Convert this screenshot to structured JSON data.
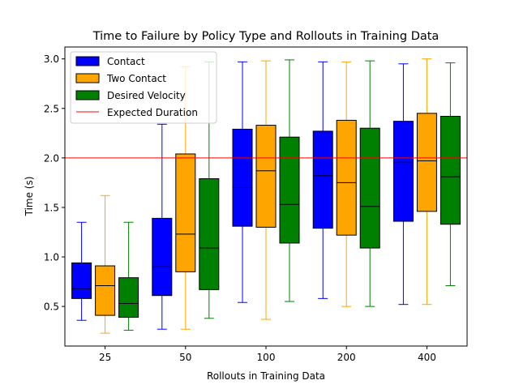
{
  "chart_data": {
    "type": "box",
    "title": "Time to Failure by Policy Type and Rollouts in Training Data",
    "xlabel": "Rollouts in Training Data",
    "ylabel": "Time (s)",
    "ylim": [
      0.1,
      3.12
    ],
    "yticks": [
      "0.5",
      "1.0",
      "1.5",
      "2.0",
      "2.5",
      "3.0"
    ],
    "categories": [
      "25",
      "50",
      "100",
      "200",
      "400"
    ],
    "legend_position": "top-left",
    "grid": false,
    "reference_line": {
      "name": "Expected Duration",
      "value": 2.0,
      "color": "#ff0000"
    },
    "series": [
      {
        "name": "Contact",
        "fill": "#0000ff",
        "whisker_color": "#0000ff",
        "boxes": [
          {
            "min": 0.36,
            "q1": 0.58,
            "median": 0.68,
            "q3": 0.94,
            "max": 1.35
          },
          {
            "min": 0.27,
            "q1": 0.61,
            "median": 0.9,
            "q3": 1.39,
            "max": 2.34
          },
          {
            "min": 0.54,
            "q1": 1.31,
            "median": 1.7,
            "q3": 2.29,
            "max": 2.97
          },
          {
            "min": 0.58,
            "q1": 1.29,
            "median": 1.82,
            "q3": 2.27,
            "max": 2.97
          },
          {
            "min": 0.52,
            "q1": 1.36,
            "median": 1.96,
            "q3": 2.37,
            "max": 2.95
          }
        ]
      },
      {
        "name": "Two Contact",
        "fill": "#ffa500",
        "whisker_color": "#ffa500",
        "boxes": [
          {
            "min": 0.23,
            "q1": 0.41,
            "median": 0.71,
            "q3": 0.91,
            "max": 1.62
          },
          {
            "min": 0.27,
            "q1": 0.85,
            "median": 1.23,
            "q3": 2.04,
            "max": 2.92
          },
          {
            "min": 0.37,
            "q1": 1.3,
            "median": 1.87,
            "q3": 2.33,
            "max": 2.98
          },
          {
            "min": 0.5,
            "q1": 1.22,
            "median": 1.75,
            "q3": 2.38,
            "max": 2.97
          },
          {
            "min": 0.52,
            "q1": 1.46,
            "median": 1.97,
            "q3": 2.45,
            "max": 3.0
          }
        ]
      },
      {
        "name": "Desired Velocity",
        "fill": "#008000",
        "whisker_color": "#008000",
        "boxes": [
          {
            "min": 0.26,
            "q1": 0.39,
            "median": 0.53,
            "q3": 0.79,
            "max": 1.35
          },
          {
            "min": 0.38,
            "q1": 0.67,
            "median": 1.09,
            "q3": 1.79,
            "max": 2.97
          },
          {
            "min": 0.55,
            "q1": 1.14,
            "median": 1.53,
            "q3": 2.21,
            "max": 2.99
          },
          {
            "min": 0.5,
            "q1": 1.09,
            "median": 1.51,
            "q3": 2.3,
            "max": 2.98
          },
          {
            "min": 0.71,
            "q1": 1.33,
            "median": 1.81,
            "q3": 2.42,
            "max": 2.96
          }
        ]
      }
    ]
  }
}
